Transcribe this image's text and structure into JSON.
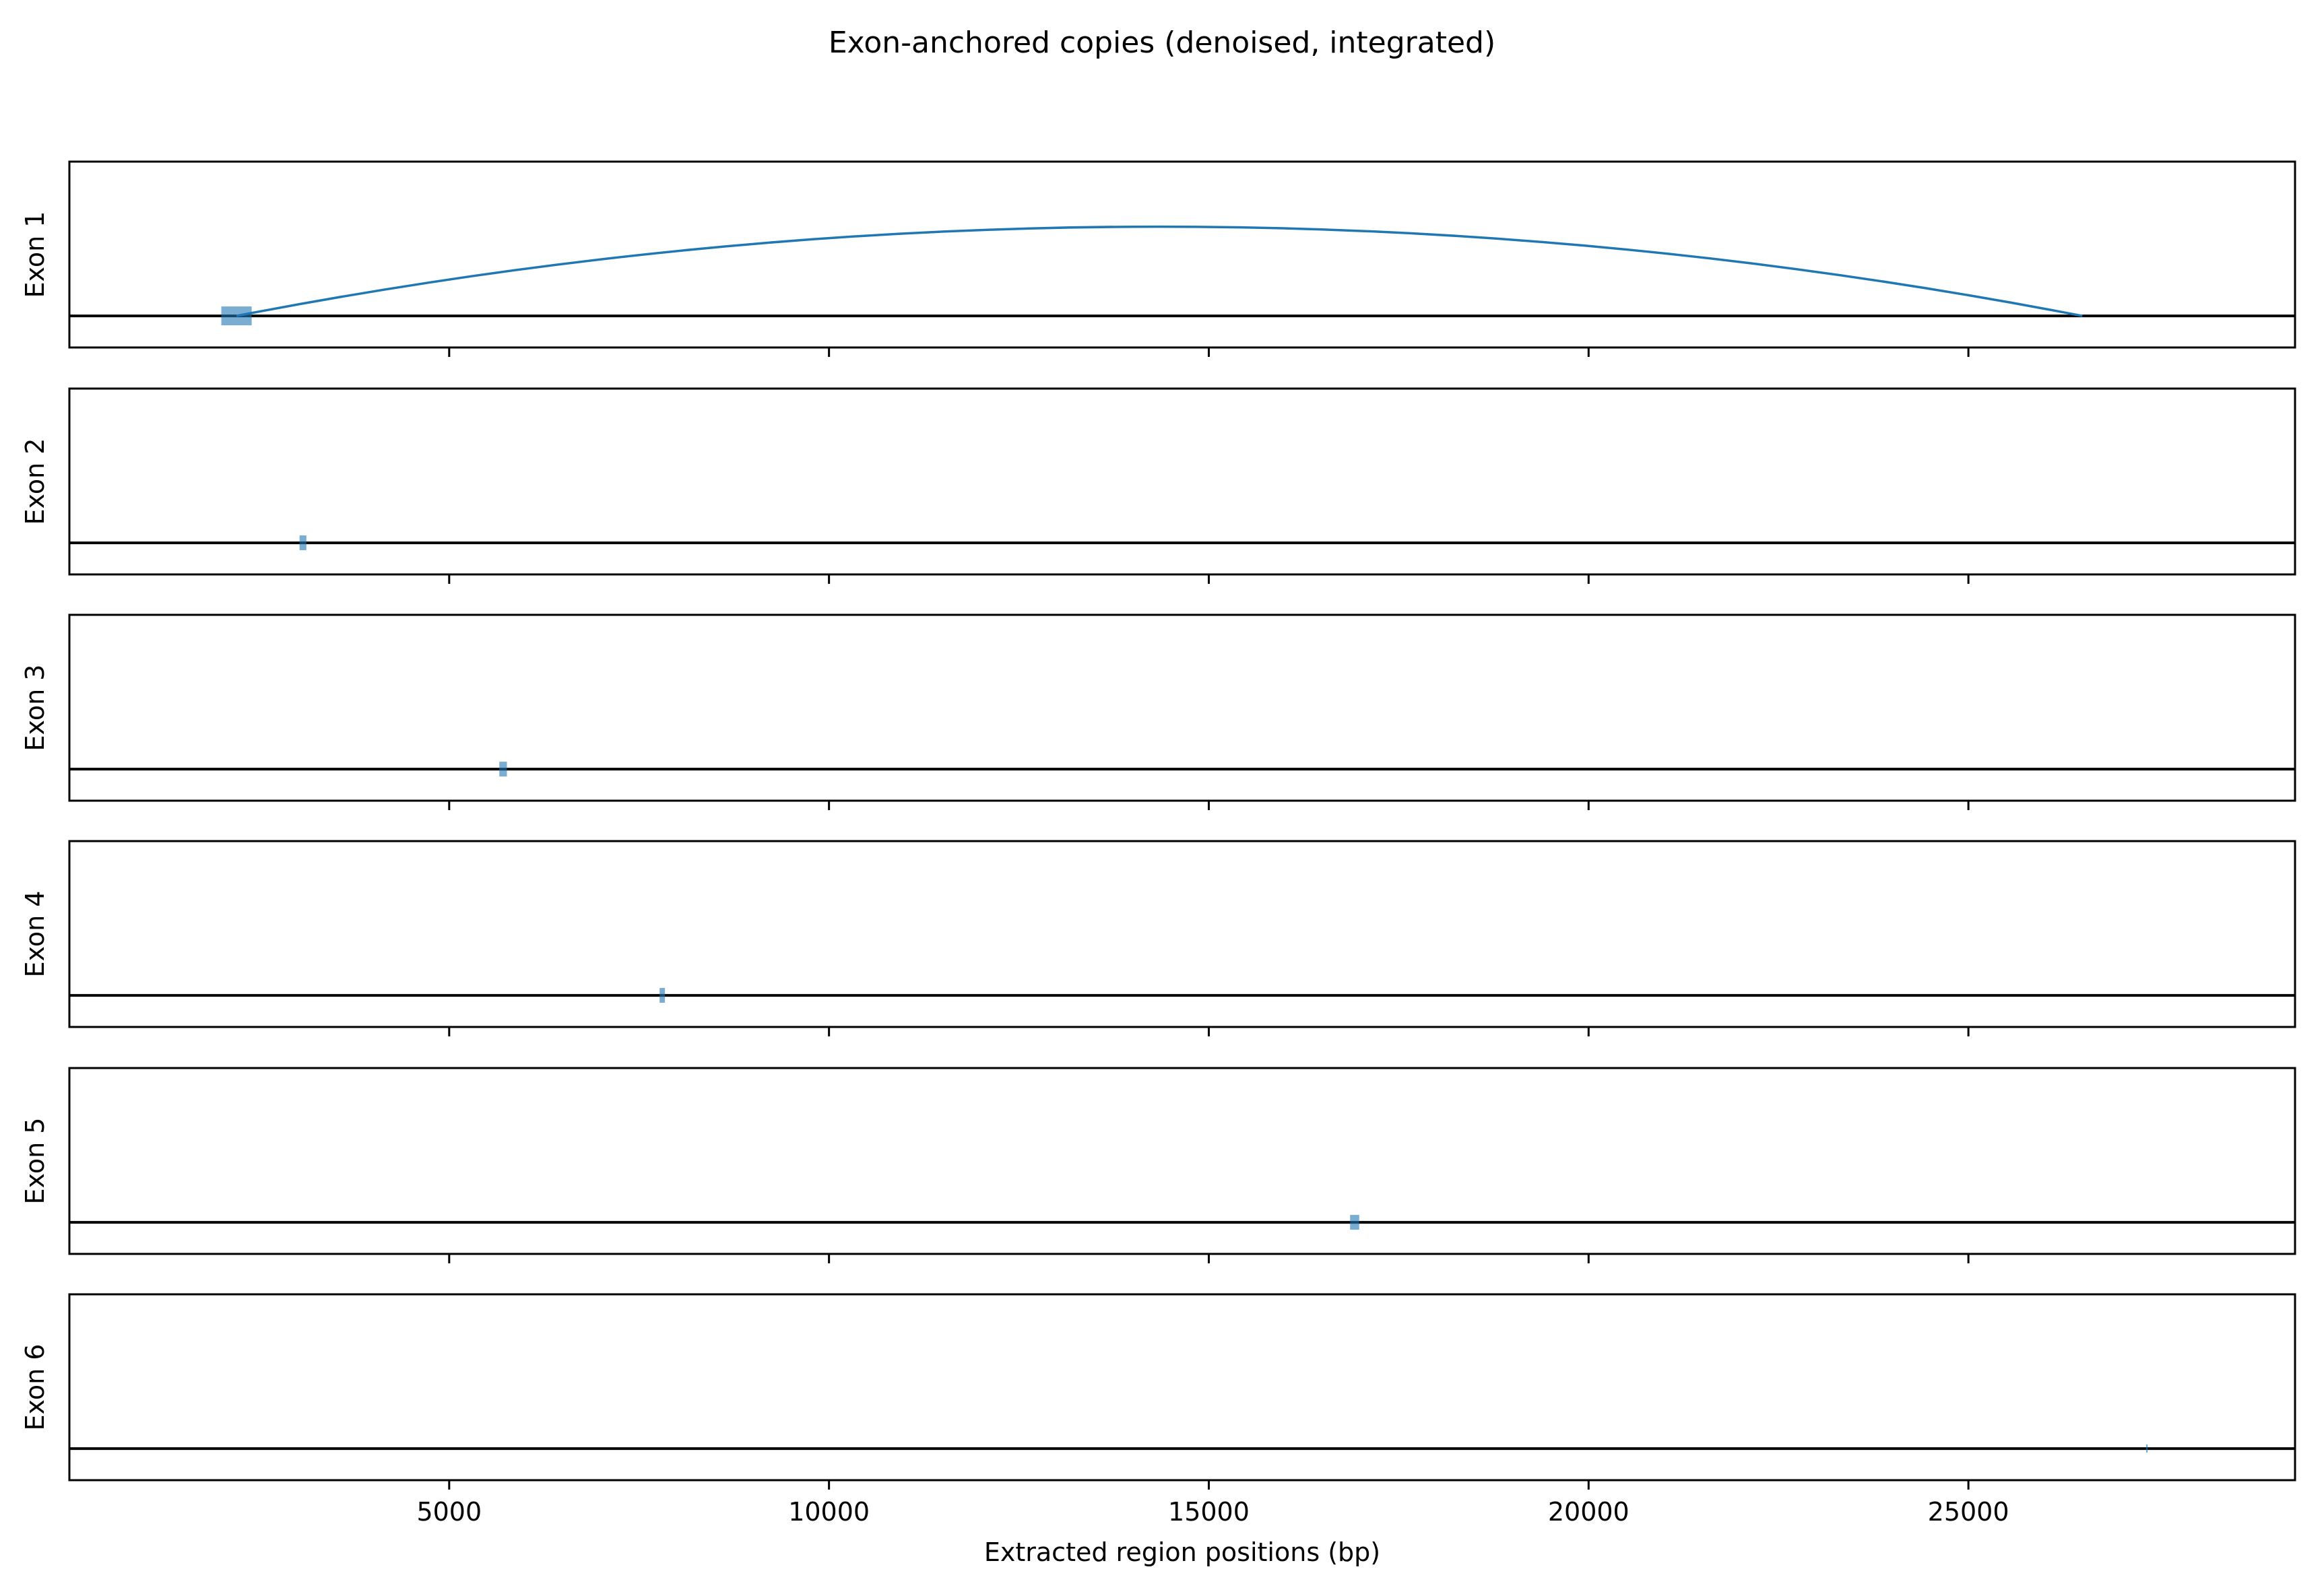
{
  "chart_data": {
    "type": "line",
    "title": "Exon-anchored copies (denoised, integrated)",
    "xlabel": "Extracted region positions (bp)",
    "xlim": [
      0,
      29300
    ],
    "xticks": [
      5000,
      10000,
      15000,
      20000,
      25000
    ],
    "xtick_labels": [
      "5000",
      "10000",
      "15000",
      "20000",
      "25000"
    ],
    "grid": false,
    "colors": {
      "mark": "#1f77b4",
      "baseline": "#000000",
      "frame": "#000000"
    },
    "panels": [
      {
        "ylabel": "Exon 1",
        "marks": [
          {
            "start": 2000,
            "end": 2400,
            "size": "large"
          }
        ],
        "arcs": [
          {
            "from": 2200,
            "to": 26500
          }
        ]
      },
      {
        "ylabel": "Exon 2",
        "marks": [
          {
            "start": 3030,
            "end": 3120,
            "size": "medium"
          }
        ],
        "arcs": []
      },
      {
        "ylabel": "Exon 3",
        "marks": [
          {
            "start": 5660,
            "end": 5760,
            "size": "medium"
          }
        ],
        "arcs": []
      },
      {
        "ylabel": "Exon 4",
        "marks": [
          {
            "start": 7770,
            "end": 7840,
            "size": "medium"
          }
        ],
        "arcs": []
      },
      {
        "ylabel": "Exon 5",
        "marks": [
          {
            "start": 16860,
            "end": 16980,
            "size": "medium"
          }
        ],
        "arcs": []
      },
      {
        "ylabel": "Exon 6",
        "marks": [
          {
            "start": 27340,
            "end": 27360,
            "size": "thin"
          }
        ],
        "arcs": []
      }
    ]
  }
}
